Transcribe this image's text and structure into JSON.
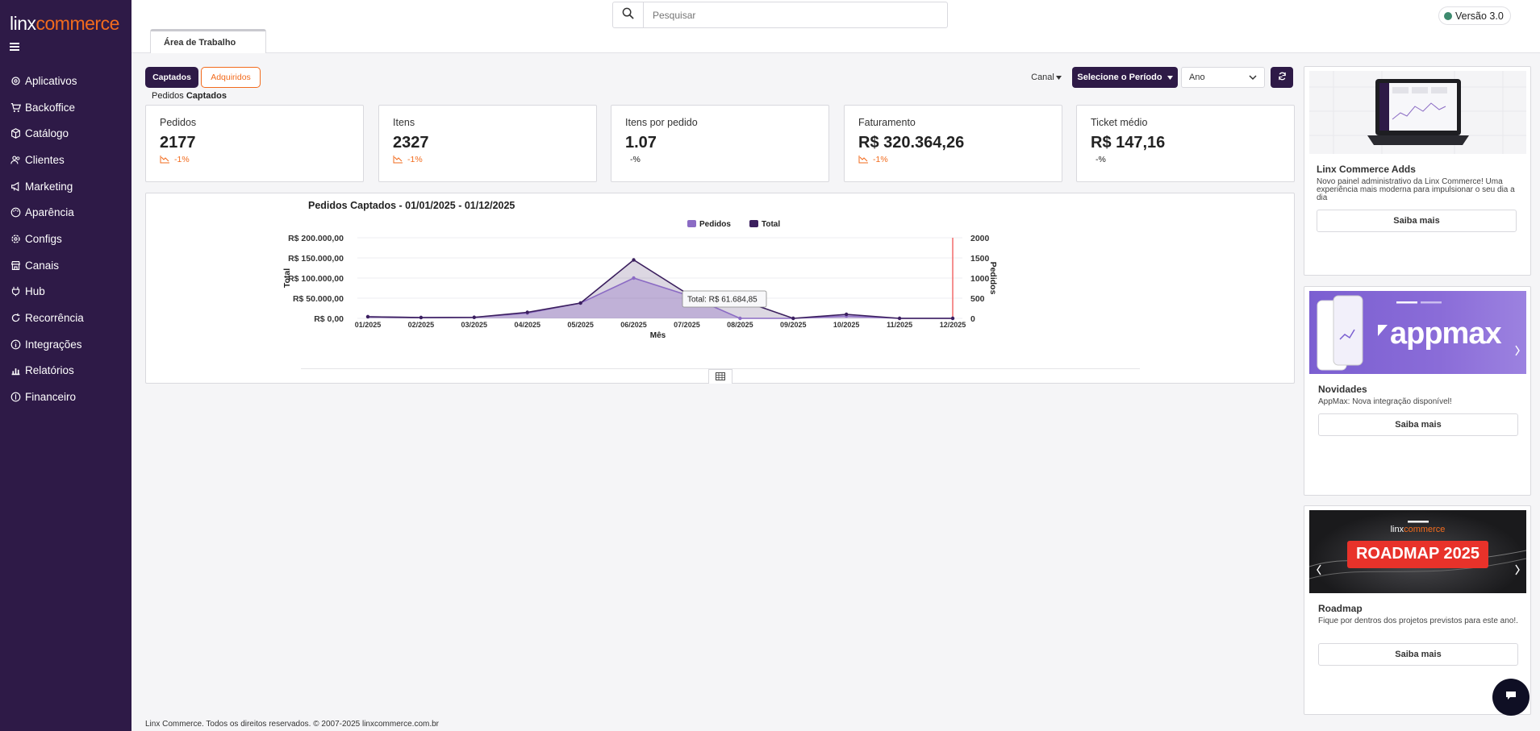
{
  "brand": {
    "part1": "linx",
    "part2": "commerce"
  },
  "sidebar": {
    "items": [
      {
        "label": "Aplicativos",
        "icon": "gear-icon"
      },
      {
        "label": "Backoffice",
        "icon": "cart-icon"
      },
      {
        "label": "Catálogo",
        "icon": "box-icon"
      },
      {
        "label": "Clientes",
        "icon": "users-icon"
      },
      {
        "label": "Marketing",
        "icon": "megaphone-icon"
      },
      {
        "label": "Aparência",
        "icon": "palette-icon"
      },
      {
        "label": "Configs",
        "icon": "gear-icon"
      },
      {
        "label": "Canais",
        "icon": "store-icon"
      },
      {
        "label": "Hub",
        "icon": "plug-icon"
      },
      {
        "label": "Recorrência",
        "icon": "recurrence-icon"
      },
      {
        "label": "Integrações",
        "icon": "info-icon"
      },
      {
        "label": "Relatórios",
        "icon": "bar-chart-icon"
      },
      {
        "label": "Financeiro",
        "icon": "dollar-icon"
      }
    ]
  },
  "header": {
    "search_placeholder": "Pesquisar",
    "version": "Versão 3.0",
    "tab": "Área de Trabalho"
  },
  "controls": {
    "captados": "Captados",
    "adquiridos": "Adquiridos",
    "section_prefix": "Pedidos ",
    "section_bold": "Captados",
    "canal": "Canal",
    "periodo": "Selecione o Período",
    "ano": "Ano"
  },
  "kpis": [
    {
      "title": "Pedidos",
      "value": "2177",
      "delta": "-1%",
      "trend": true
    },
    {
      "title": "Itens",
      "value": "2327",
      "delta": "-1%",
      "trend": true
    },
    {
      "title": "Itens por pedido",
      "value": "1.07",
      "delta": "-%",
      "trend": false
    },
    {
      "title": "Faturamento",
      "value": "R$ 320.364,26",
      "delta": "-1%",
      "trend": true
    },
    {
      "title": "Ticket médio",
      "value": "R$ 147,16",
      "delta": "-%",
      "trend": false
    }
  ],
  "chart_data": {
    "type": "area",
    "title": "Pedidos Captados - 01/01/2025 - 01/12/2025",
    "xlabel": "Mês",
    "ylabel": "Total",
    "y2label": "Pedidos",
    "categories": [
      "01/2025",
      "02/2025",
      "03/2025",
      "04/2025",
      "05/2025",
      "06/2025",
      "07/2025",
      "08/2025",
      "09/2025",
      "10/2025",
      "11/2025",
      "12/2025"
    ],
    "y_ticks": [
      "R$ 0,00",
      "R$ 50.000,00",
      "R$ 100.000,00",
      "R$ 150.000,00",
      "R$ 200.000,00"
    ],
    "y2_ticks": [
      "0",
      "500",
      "1000",
      "1500",
      "2000"
    ],
    "ylim": [
      0,
      200000
    ],
    "y2lim": [
      0,
      2000
    ],
    "series": [
      {
        "name": "Pedidos",
        "axis": "right",
        "color": "#8b6bc4",
        "values": [
          40,
          20,
          25,
          130,
          380,
          1000,
          580,
          0,
          0,
          60,
          0,
          0
        ]
      },
      {
        "name": "Total",
        "axis": "left",
        "color": "#3b1f5e",
        "values": [
          4000,
          2000,
          2500,
          15000,
          38000,
          145000,
          61684.85,
          46000,
          0,
          10000,
          0,
          0
        ]
      }
    ],
    "tooltip": "Total: R$ 61.684,85",
    "legend": "top-center",
    "highlight_marker": "12/2025"
  },
  "promos": [
    {
      "title": "Linx Commerce Adds",
      "text": "Novo painel administrativo da Linx Commerce! Uma experiência mais moderna para impulsionar o seu dia a dia",
      "button": "Saiba mais"
    },
    {
      "title": "Novidades",
      "text": "AppMax: Nova integração disponível!",
      "button": "Saiba mais",
      "banner": "appmax"
    },
    {
      "title": "Roadmap",
      "text": "Fique por dentros dos projetos previstos para este ano!.",
      "button": "Saiba mais",
      "banner_brand1": "linx",
      "banner_brand2": "commerce",
      "banner_text": "ROADMAP 2025"
    }
  ],
  "footer": "Linx Commerce. Todos os direitos reservados. © 2007-2025 linxcommerce.com.br"
}
